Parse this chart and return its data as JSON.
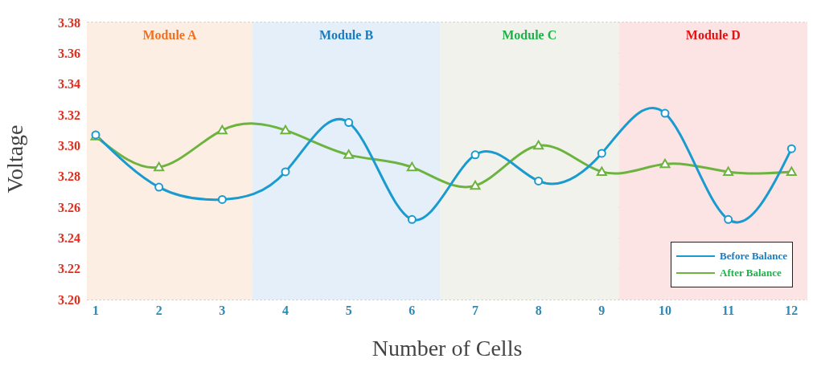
{
  "chart_data": {
    "type": "line",
    "xlabel": "Number of Cells",
    "ylabel": "Voltage",
    "x": [
      1,
      2,
      3,
      4,
      5,
      6,
      7,
      8,
      9,
      10,
      11,
      12
    ],
    "series": [
      {
        "name": "Before Balance",
        "color": "#1a9bd0",
        "marker": "circle",
        "values": [
          3.307,
          3.273,
          3.265,
          3.283,
          3.315,
          3.252,
          3.294,
          3.277,
          3.295,
          3.321,
          3.252,
          3.298
        ]
      },
      {
        "name": "After Balance",
        "color": "#6db33f",
        "marker": "triangle",
        "values": [
          3.306,
          3.286,
          3.31,
          3.31,
          3.294,
          3.286,
          3.274,
          3.3,
          3.283,
          3.288,
          3.283,
          3.283
        ]
      }
    ],
    "xlim": [
      0.86,
      12.25
    ],
    "xticks": [
      1,
      2,
      3,
      4,
      5,
      6,
      7,
      8,
      9,
      10,
      11,
      12
    ],
    "ylim": [
      3.2,
      3.38
    ],
    "yticks": [
      {
        "value": 3.2,
        "label": "3.20"
      },
      3.22,
      3.24,
      3.26,
      3.28,
      {
        "value": 3.3,
        "label": "3.30"
      },
      3.32,
      3.34,
      3.36,
      3.38
    ],
    "bands": [
      {
        "axis": "x",
        "from": 0.86,
        "to": 3.48,
        "label": "Module A",
        "color": "#fdeee4"
      },
      {
        "axis": "x",
        "from": 3.48,
        "to": 6.44,
        "label": "Module B",
        "color": "#e4eff9"
      },
      {
        "axis": "x",
        "from": 6.44,
        "to": 9.27,
        "label": "Module C",
        "color": "#f2f2ec"
      },
      {
        "axis": "x",
        "from": 9.27,
        "to": 12.25,
        "label": "Module D",
        "color": "#fde4e4"
      }
    ],
    "grid": "y",
    "legend": "bottom right",
    "line_style": "solid"
  }
}
